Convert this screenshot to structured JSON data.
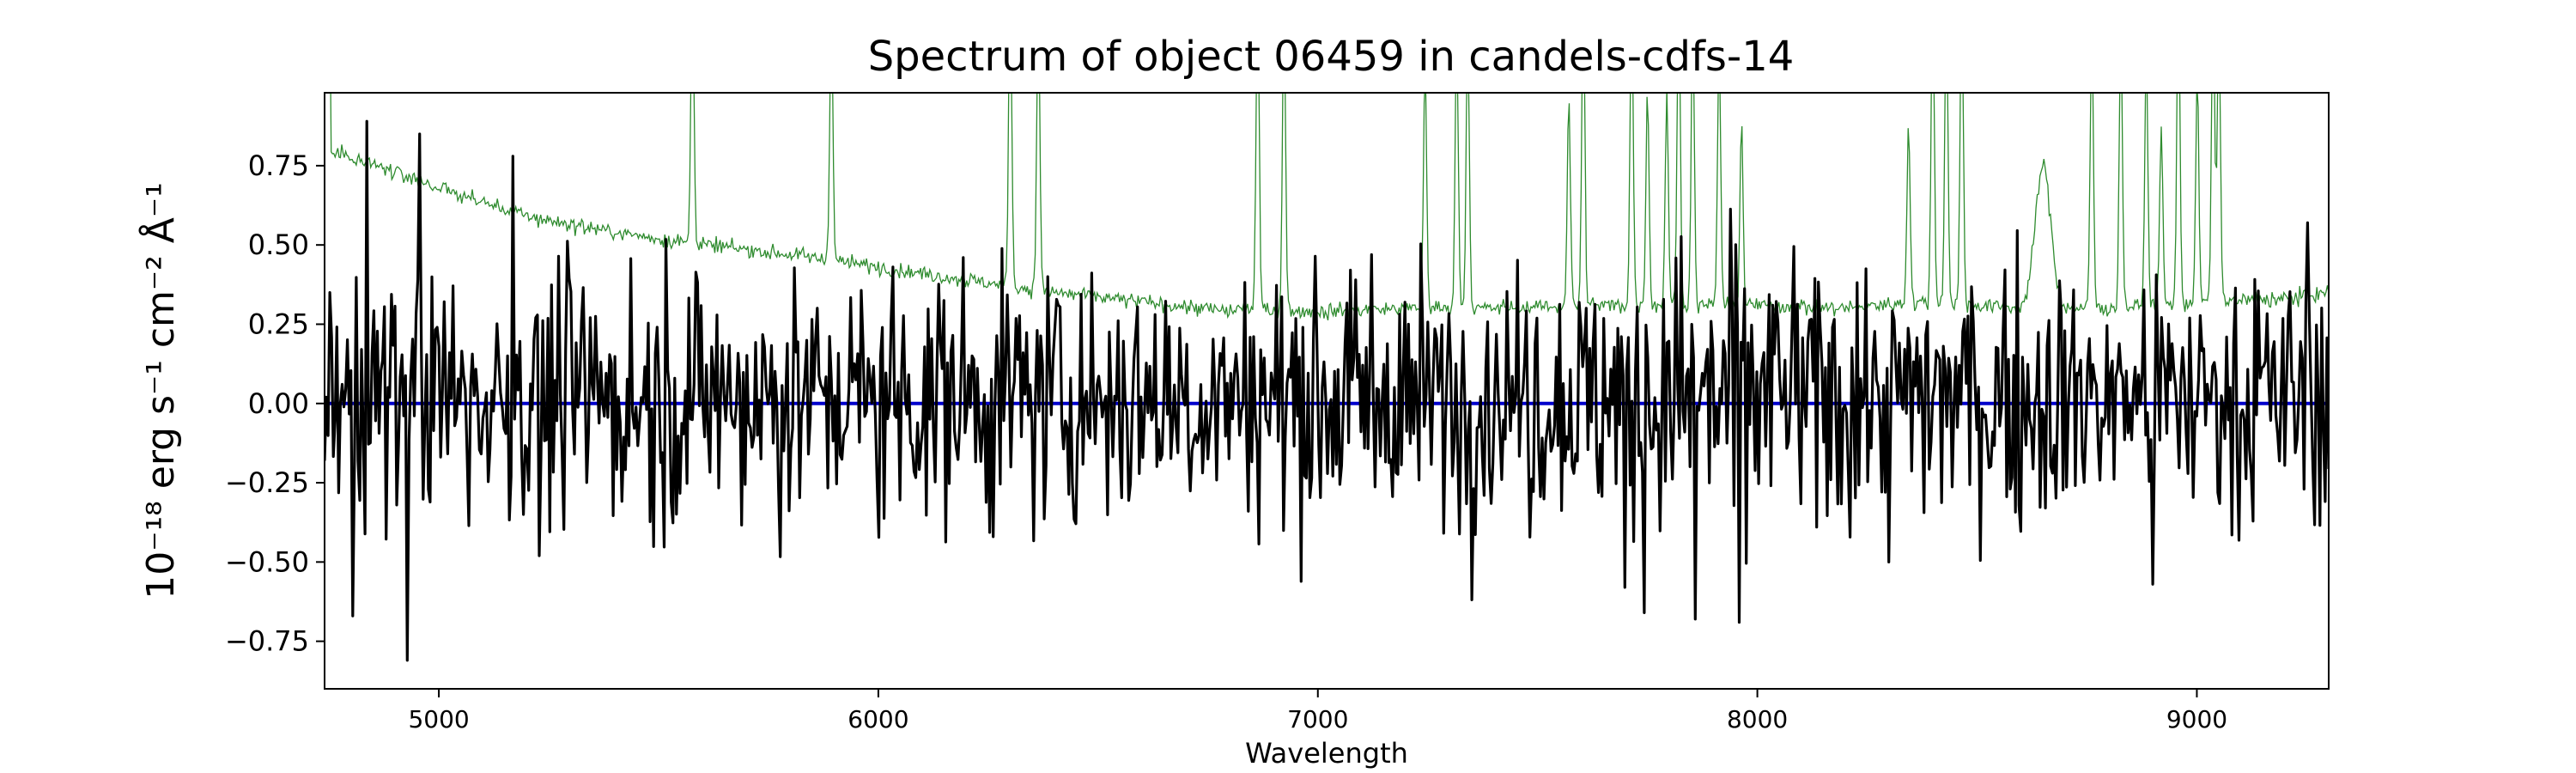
{
  "chart_data": {
    "type": "line",
    "title": "Spectrum of object 06459 in candels-cdfs-14",
    "xlabel": "Wavelength",
    "ylabel": "10⁻¹⁸ erg s⁻¹ cm⁻² Å⁻¹",
    "xlim": [
      4740,
      9300
    ],
    "ylim": [
      -0.9,
      0.98
    ],
    "x_ticks": [
      5000,
      6000,
      7000,
      8000,
      9000
    ],
    "y_ticks": [
      -0.75,
      -0.5,
      -0.25,
      0.0,
      0.25,
      0.5,
      0.75
    ],
    "y_tick_labels": [
      "−0.75",
      "−0.50",
      "−0.25",
      "0.00",
      "0.25",
      "0.50",
      "0.75"
    ],
    "grid": false,
    "series": [
      {
        "role": "error",
        "color": "#2e8b2e",
        "x": [
          4740,
          4800,
          4900,
          5000,
          5200,
          5400,
          5600,
          5800,
          6000,
          6200,
          6400,
          6600,
          6800,
          6820,
          7000,
          7200,
          7400,
          7600,
          7800,
          8000,
          8200,
          8260,
          8400,
          8600,
          8800,
          9000,
          9200,
          9300
        ],
        "y": [
          0.8,
          0.78,
          0.73,
          0.68,
          0.59,
          0.54,
          0.5,
          0.47,
          0.43,
          0.39,
          0.35,
          0.32,
          0.29,
          0.3,
          0.29,
          0.3,
          0.3,
          0.31,
          0.31,
          0.31,
          0.3,
          0.31,
          0.32,
          0.3,
          0.3,
          0.32,
          0.33,
          0.35
        ],
        "skylines": [
          5577,
          5893,
          6300,
          6364,
          6863,
          6923,
          7244,
          7316,
          7341,
          7571,
          7604,
          7714,
          7750,
          7794,
          7821,
          7853,
          7913,
          7964,
          8344,
          8399,
          8430,
          8465,
          8761,
          8827,
          8885,
          8919,
          8958,
          9001,
          9037,
          9050
        ]
      },
      {
        "role": "flux",
        "color": "#000000",
        "x_start": 4740,
        "x_end": 9300,
        "n_points": 1140,
        "noise_sigma": 0.2,
        "extremes": [
          [
            4805,
            -0.67
          ],
          [
            4835,
            0.89
          ],
          [
            4930,
            -0.81
          ],
          [
            4955,
            0.85
          ],
          [
            5170,
            0.78
          ],
          [
            5230,
            -0.48
          ],
          [
            7700,
            -0.58
          ],
          [
            7860,
            -0.68
          ],
          [
            7960,
            -0.69
          ],
          [
            8300,
            -0.5
          ],
          [
            8900,
            -0.57
          ],
          [
            9250,
            0.57
          ]
        ]
      },
      {
        "role": "zero",
        "color": "#0000cc",
        "x": [
          4740,
          9300
        ],
        "y": [
          0.0,
          0.0
        ]
      }
    ]
  }
}
